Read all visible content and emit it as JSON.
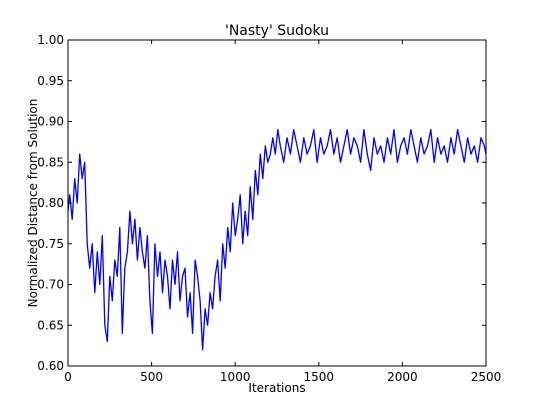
{
  "chart_data": {
    "type": "line",
    "title": "'Nasty' Sudoku",
    "xlabel": "Iterations",
    "ylabel": "Normalized Distance from Solution",
    "xlim": [
      0,
      2500
    ],
    "ylim": [
      0.6,
      1.0
    ],
    "xticks": [
      "0",
      "500",
      "1000",
      "1500",
      "2000",
      "2500"
    ],
    "yticks": [
      "0.60",
      "0.65",
      "0.70",
      "0.75",
      "0.80",
      "0.85",
      "0.90",
      "0.95",
      "1.00"
    ],
    "grid": false,
    "line_color": "#0000ff",
    "series": [
      {
        "x": [
          0,
          10,
          25,
          40,
          55,
          70,
          85,
          100,
          115,
          130,
          145,
          160,
          175,
          190,
          205,
          220,
          235,
          250,
          265,
          280,
          295,
          310,
          325,
          340,
          355,
          370,
          385,
          400,
          415,
          430,
          445,
          460,
          475,
          490,
          505,
          520,
          535,
          550,
          565,
          580,
          595,
          610,
          625,
          640,
          655,
          670,
          685,
          700,
          715,
          730,
          745,
          760,
          775,
          790,
          805,
          820,
          835,
          850,
          865,
          880,
          895,
          910,
          925,
          940,
          955,
          970,
          985,
          1000,
          1015,
          1030,
          1045,
          1060,
          1075,
          1090,
          1105,
          1120,
          1135,
          1150,
          1165,
          1180,
          1195,
          1210,
          1225,
          1240,
          1255,
          1270,
          1290,
          1310,
          1330,
          1350,
          1370,
          1390,
          1410,
          1430,
          1450,
          1470,
          1490,
          1510,
          1530,
          1550,
          1570,
          1590,
          1610,
          1630,
          1650,
          1670,
          1690,
          1710,
          1730,
          1750,
          1770,
          1790,
          1810,
          1830,
          1850,
          1870,
          1890,
          1910,
          1930,
          1950,
          1970,
          1990,
          2010,
          2030,
          2050,
          2070,
          2090,
          2110,
          2130,
          2150,
          2170,
          2190,
          2210,
          2230,
          2250,
          2270,
          2290,
          2310,
          2330,
          2350,
          2370,
          2390,
          2410,
          2430,
          2450,
          2470,
          2490,
          2500
        ],
        "y": [
          0.79,
          0.81,
          0.78,
          0.83,
          0.8,
          0.86,
          0.83,
          0.85,
          0.75,
          0.72,
          0.75,
          0.69,
          0.74,
          0.7,
          0.76,
          0.65,
          0.63,
          0.71,
          0.68,
          0.73,
          0.71,
          0.77,
          0.64,
          0.72,
          0.74,
          0.79,
          0.75,
          0.78,
          0.73,
          0.77,
          0.74,
          0.72,
          0.76,
          0.68,
          0.64,
          0.75,
          0.71,
          0.74,
          0.69,
          0.73,
          0.71,
          0.67,
          0.73,
          0.7,
          0.74,
          0.68,
          0.71,
          0.72,
          0.66,
          0.69,
          0.64,
          0.73,
          0.71,
          0.68,
          0.62,
          0.67,
          0.65,
          0.69,
          0.67,
          0.71,
          0.73,
          0.68,
          0.75,
          0.72,
          0.77,
          0.74,
          0.8,
          0.76,
          0.78,
          0.81,
          0.75,
          0.79,
          0.76,
          0.82,
          0.78,
          0.84,
          0.81,
          0.86,
          0.83,
          0.87,
          0.85,
          0.86,
          0.88,
          0.86,
          0.89,
          0.87,
          0.85,
          0.88,
          0.86,
          0.89,
          0.87,
          0.85,
          0.88,
          0.86,
          0.87,
          0.89,
          0.85,
          0.88,
          0.86,
          0.87,
          0.89,
          0.86,
          0.88,
          0.85,
          0.87,
          0.89,
          0.86,
          0.88,
          0.87,
          0.85,
          0.89,
          0.86,
          0.84,
          0.88,
          0.86,
          0.87,
          0.85,
          0.88,
          0.86,
          0.89,
          0.85,
          0.87,
          0.88,
          0.86,
          0.89,
          0.87,
          0.85,
          0.88,
          0.86,
          0.87,
          0.89,
          0.85,
          0.88,
          0.86,
          0.87,
          0.85,
          0.88,
          0.86,
          0.89,
          0.87,
          0.85,
          0.88,
          0.86,
          0.87,
          0.85,
          0.88,
          0.87,
          0.86
        ]
      }
    ]
  }
}
